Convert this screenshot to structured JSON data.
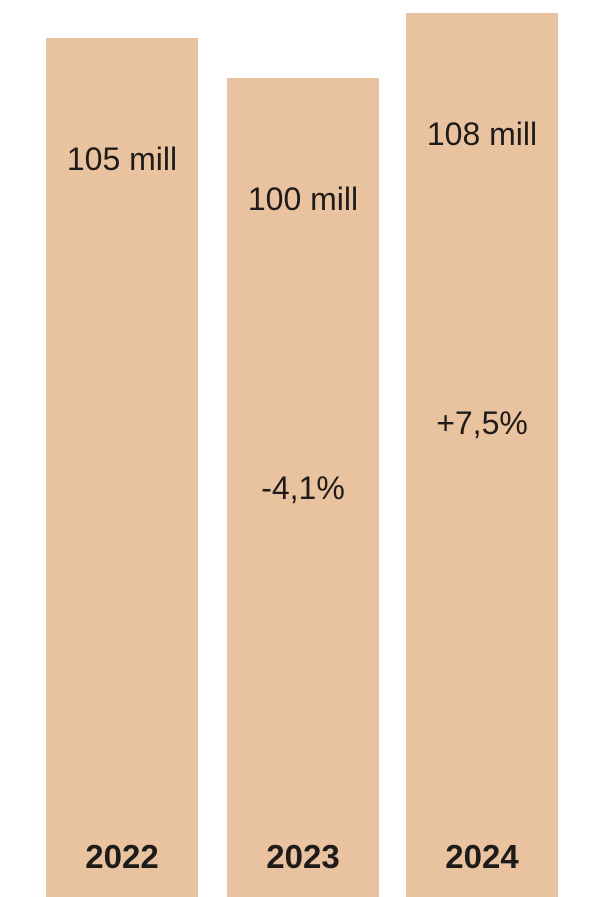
{
  "chart_data": {
    "type": "bar",
    "categories": [
      "2022",
      "2023",
      "2024"
    ],
    "values": [
      105,
      100,
      108
    ],
    "unit": "mill",
    "value_labels": [
      "105 mill",
      "100 mill",
      "108 mill"
    ],
    "change_labels": [
      "",
      "-4,1%",
      "+7,5%"
    ],
    "bar_color": "#e9c39f",
    "text_color": "#1f1b19",
    "ylim": [
      0,
      108
    ]
  }
}
